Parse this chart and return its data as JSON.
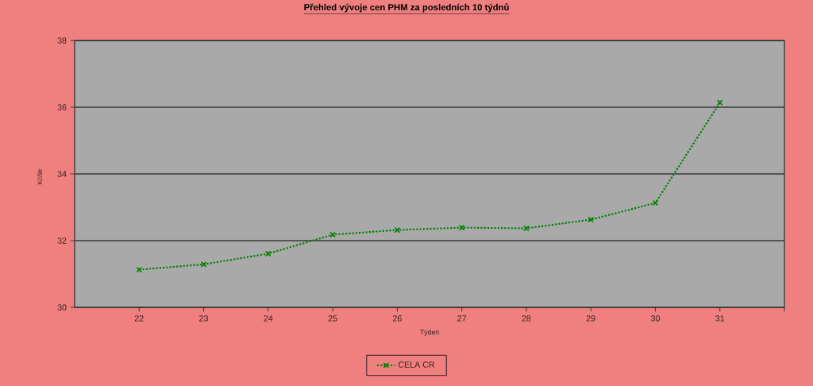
{
  "chart_data": {
    "type": "line",
    "title": "Přehled vývoje cen PHM za posledních 10 týdnů",
    "xlabel": "Týden",
    "ylabel": "Kč/litr",
    "x": [
      22,
      23,
      24,
      25,
      26,
      27,
      28,
      29,
      30,
      31
    ],
    "series": [
      {
        "name": "CELA CR",
        "color": "#008000",
        "values": [
          31.13,
          31.29,
          31.61,
          32.18,
          32.32,
          32.39,
          32.37,
          32.63,
          33.13,
          36.14
        ]
      }
    ],
    "xlim": [
      21,
      32
    ],
    "xticks": [
      22,
      23,
      24,
      25,
      26,
      27,
      28,
      29,
      30,
      31,
      {
        "value": 32,
        "label": null
      }
    ],
    "ylim": [
      30,
      38
    ],
    "yticks": [
      30,
      32,
      34,
      36,
      38
    ],
    "grid": "y",
    "legend": "bottom",
    "marker": "cross",
    "line_style": "dotted"
  }
}
